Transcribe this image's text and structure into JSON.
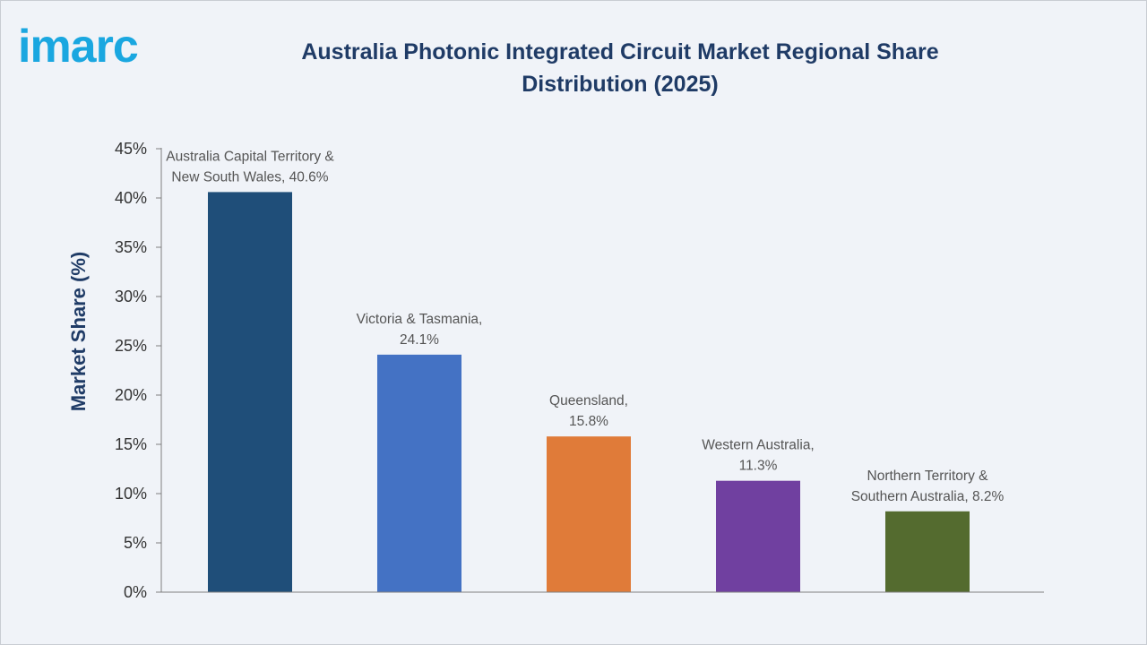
{
  "brand": {
    "logo_text": "imarc"
  },
  "chart_data": {
    "type": "bar",
    "title": "Australia Photonic Integrated Circuit Market Regional Share Distribution (2025)",
    "title_lines": [
      "Australia Photonic Integrated Circuit Market Regional Share",
      "Distribution (2025)"
    ],
    "ylabel": "Market Share (%)",
    "xlabel": "",
    "ylim": [
      0,
      45
    ],
    "yticks": [
      0,
      5,
      10,
      15,
      20,
      25,
      30,
      35,
      40,
      45
    ],
    "ytick_labels": [
      "0%",
      "5%",
      "10%",
      "15%",
      "20%",
      "25%",
      "30%",
      "35%",
      "40%",
      "45%"
    ],
    "grid": false,
    "categories": [
      "Australia Capital Territory & New South Wales",
      "Victoria & Tasmania",
      "Queensland",
      "Western Australia",
      "Northern Territory & Southern Australia"
    ],
    "values": [
      40.6,
      24.1,
      15.8,
      11.3,
      8.2
    ],
    "data_labels": [
      [
        "Australia Capital Territory &",
        "New South Wales, 40.6%"
      ],
      [
        "Victoria & Tasmania,",
        "24.1%"
      ],
      [
        "Queensland,",
        "15.8%"
      ],
      [
        "Western Australia,",
        "11.3%"
      ],
      [
        "Northern Territory &",
        "Southern Australia, 8.2%"
      ]
    ],
    "colors": [
      "#1f4e79",
      "#4472c4",
      "#e07b39",
      "#7040a0",
      "#546b2f"
    ]
  }
}
